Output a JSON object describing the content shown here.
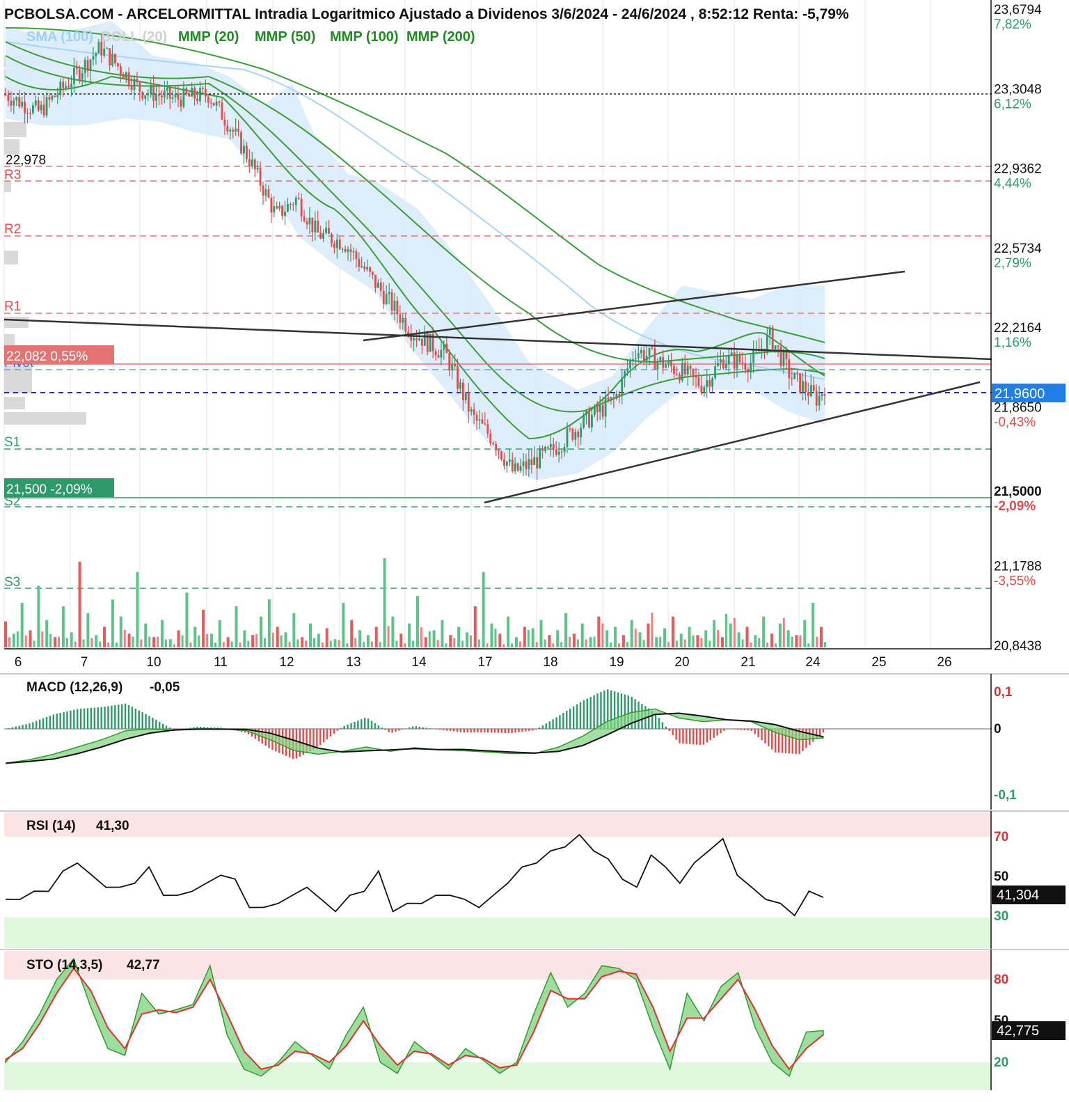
{
  "title": "PCBOLSA.COM - ARCELORMITTAL Intradia Logaritmico Ajustado a Dividenos 3/6/2024 - 24/6/2024 , 8:52:12 Renta: -5,79%",
  "legend": [
    {
      "label": "SMA (100)",
      "color": "#9fd0f2"
    },
    {
      "label": "BOLL (20)",
      "color": "#d0d0d0"
    },
    {
      "label": "MMP (20)",
      "color": "#1f8a1f"
    },
    {
      "label": "MMP (50)",
      "color": "#1f8a1f"
    },
    {
      "label": "MMP (100)",
      "color": "#1f8a1f"
    },
    {
      "label": "MMP (200)",
      "color": "#1f8a1f"
    }
  ],
  "chart_data": {
    "type": "candlestick",
    "scale": "log",
    "x_ticks": [
      "6",
      "7",
      "10",
      "11",
      "12",
      "13",
      "14",
      "17",
      "18",
      "19",
      "20",
      "21",
      "24",
      "25",
      "26"
    ],
    "price_axis": [
      {
        "value": "23,6794",
        "pct": "7,82%",
        "dir": "up"
      },
      {
        "value": "23,3048",
        "pct": "6,12%",
        "dir": "up"
      },
      {
        "value": "22,9362",
        "pct": "4,44%",
        "dir": "up"
      },
      {
        "value": "22,5734",
        "pct": "2,79%",
        "dir": "up"
      },
      {
        "value": "22,2164",
        "pct": "1,16%",
        "dir": "up"
      },
      {
        "value": "21,8650",
        "pct": "-0,43%",
        "dir": "down"
      },
      {
        "value": "21,5000",
        "pct": "-2,09%",
        "dir": "down"
      },
      {
        "value": "21,1788",
        "pct": "-3,55%",
        "dir": "down"
      },
      {
        "value": "20,8438",
        "pct": "",
        "dir": "none"
      }
    ],
    "ylim": [
      20.8438,
      23.6794
    ],
    "last_price": "21,9600",
    "pivot_levels": [
      "R3",
      "R2",
      "R1",
      "Pivot",
      "S1",
      "S2",
      "S3"
    ],
    "left_markers": [
      {
        "text": "22,978"
      },
      {
        "text": "22,082  0,55%",
        "color": "#e34a4a"
      },
      {
        "text": "21,500  -2,09%",
        "color": "#2e9a6a"
      }
    ],
    "price_path": [
      [
        0,
        23.28
      ],
      [
        0.5,
        23.2
      ],
      [
        1,
        23.36
      ],
      [
        1.4,
        23.5
      ],
      [
        2,
        23.3
      ],
      [
        2.5,
        23.26
      ],
      [
        3,
        23.28
      ],
      [
        3.3,
        23.14
      ],
      [
        3.6,
        22.98
      ],
      [
        4,
        22.72
      ],
      [
        4.3,
        22.8
      ],
      [
        4.6,
        22.64
      ],
      [
        5,
        22.6
      ],
      [
        5.3,
        22.48
      ],
      [
        5.6,
        22.36
      ],
      [
        6,
        22.2
      ],
      [
        6.5,
        22.1
      ],
      [
        6.9,
        21.82
      ],
      [
        7.2,
        21.73
      ],
      [
        7.5,
        21.58
      ],
      [
        8,
        21.66
      ],
      [
        8.5,
        21.79
      ],
      [
        9,
        21.9
      ],
      [
        9.3,
        22.12
      ],
      [
        9.7,
        22.06
      ],
      [
        10,
        22.02
      ],
      [
        10.3,
        21.96
      ],
      [
        10.6,
        22.08
      ],
      [
        11,
        22.06
      ],
      [
        11.3,
        22.18
      ],
      [
        11.6,
        22.0
      ],
      [
        12,
        21.9
      ],
      [
        12.1,
        21.96
      ]
    ],
    "volume": [
      38,
      20,
      65,
      25,
      90,
      40,
      15,
      60,
      22,
      125,
      50,
      18,
      30,
      70,
      45,
      20,
      110,
      35,
      15,
      40,
      12,
      25,
      80,
      30,
      55,
      20,
      40,
      15,
      60,
      25,
      18,
      45,
      70,
      30,
      22,
      50,
      15,
      35,
      20,
      28,
      12,
      65,
      40,
      25,
      18,
      30,
      130,
      45,
      20,
      35,
      75,
      15,
      25,
      40,
      18,
      30,
      22,
      60,
      110,
      35,
      20,
      45,
      15,
      30,
      28,
      40,
      18,
      25,
      50,
      20,
      35,
      15,
      45,
      25,
      30,
      18,
      40,
      22,
      35,
      15,
      28,
      45,
      20,
      30,
      18,
      25,
      40,
      15,
      35,
      22,
      30,
      18,
      45,
      20,
      35,
      25,
      18,
      40,
      65,
      30
    ],
    "macd": {
      "label": "MACD (12,26,9)",
      "value": "-0,05",
      "ticks": [
        "0,1",
        "0",
        "-0,1"
      ],
      "series": [
        -0.095,
        -0.085,
        -0.07,
        -0.05,
        -0.03,
        -0.005,
        0.0,
        -0.004,
        0.001,
        0.0,
        -0.005,
        -0.03,
        -0.06,
        -0.07,
        -0.062,
        -0.05,
        -0.062,
        -0.052,
        -0.058,
        -0.06,
        -0.064,
        -0.068,
        -0.068,
        -0.05,
        -0.02,
        0.02,
        0.045,
        0.055,
        0.03,
        0.02,
        0.025,
        0.02,
        -0.01,
        -0.03,
        -0.025
      ]
    },
    "rsi": {
      "label": "RSI (14)",
      "value": "41,30",
      "last": "41,304",
      "ticks": [
        "70",
        "50",
        "30"
      ],
      "series": [
        38,
        40,
        42,
        44,
        52,
        58,
        50,
        46,
        44,
        48,
        54,
        42,
        40,
        44,
        46,
        52,
        48,
        36,
        34,
        38,
        40,
        46,
        38,
        34,
        40,
        44,
        52,
        34,
        36,
        38,
        40,
        42,
        38,
        36,
        40,
        48,
        54,
        58,
        62,
        66,
        70,
        64,
        58,
        50,
        44,
        62,
        54,
        48,
        56,
        64,
        68,
        52,
        44,
        40,
        36,
        32,
        42,
        41
      ]
    },
    "sto": {
      "label": "STO (14,3,5)",
      "value": "42,77",
      "last": "42,775",
      "ticks": [
        "80",
        "50",
        "20"
      ],
      "series_k": [
        20,
        35,
        55,
        80,
        95,
        60,
        30,
        25,
        70,
        55,
        58,
        62,
        90,
        40,
        15,
        10,
        20,
        35,
        25,
        15,
        40,
        60,
        20,
        12,
        35,
        25,
        15,
        30,
        22,
        12,
        20,
        55,
        85,
        60,
        70,
        90,
        88,
        80,
        45,
        15,
        70,
        50,
        75,
        85,
        45,
        20,
        10,
        42,
        43
      ],
      "series_d": [
        22,
        30,
        48,
        70,
        88,
        72,
        45,
        30,
        55,
        58,
        56,
        60,
        80,
        55,
        28,
        15,
        18,
        28,
        26,
        20,
        32,
        50,
        32,
        18,
        28,
        26,
        18,
        25,
        23,
        16,
        18,
        42,
        72,
        66,
        66,
        82,
        86,
        84,
        60,
        28,
        52,
        52,
        66,
        80,
        58,
        32,
        15,
        30,
        40
      ]
    }
  }
}
